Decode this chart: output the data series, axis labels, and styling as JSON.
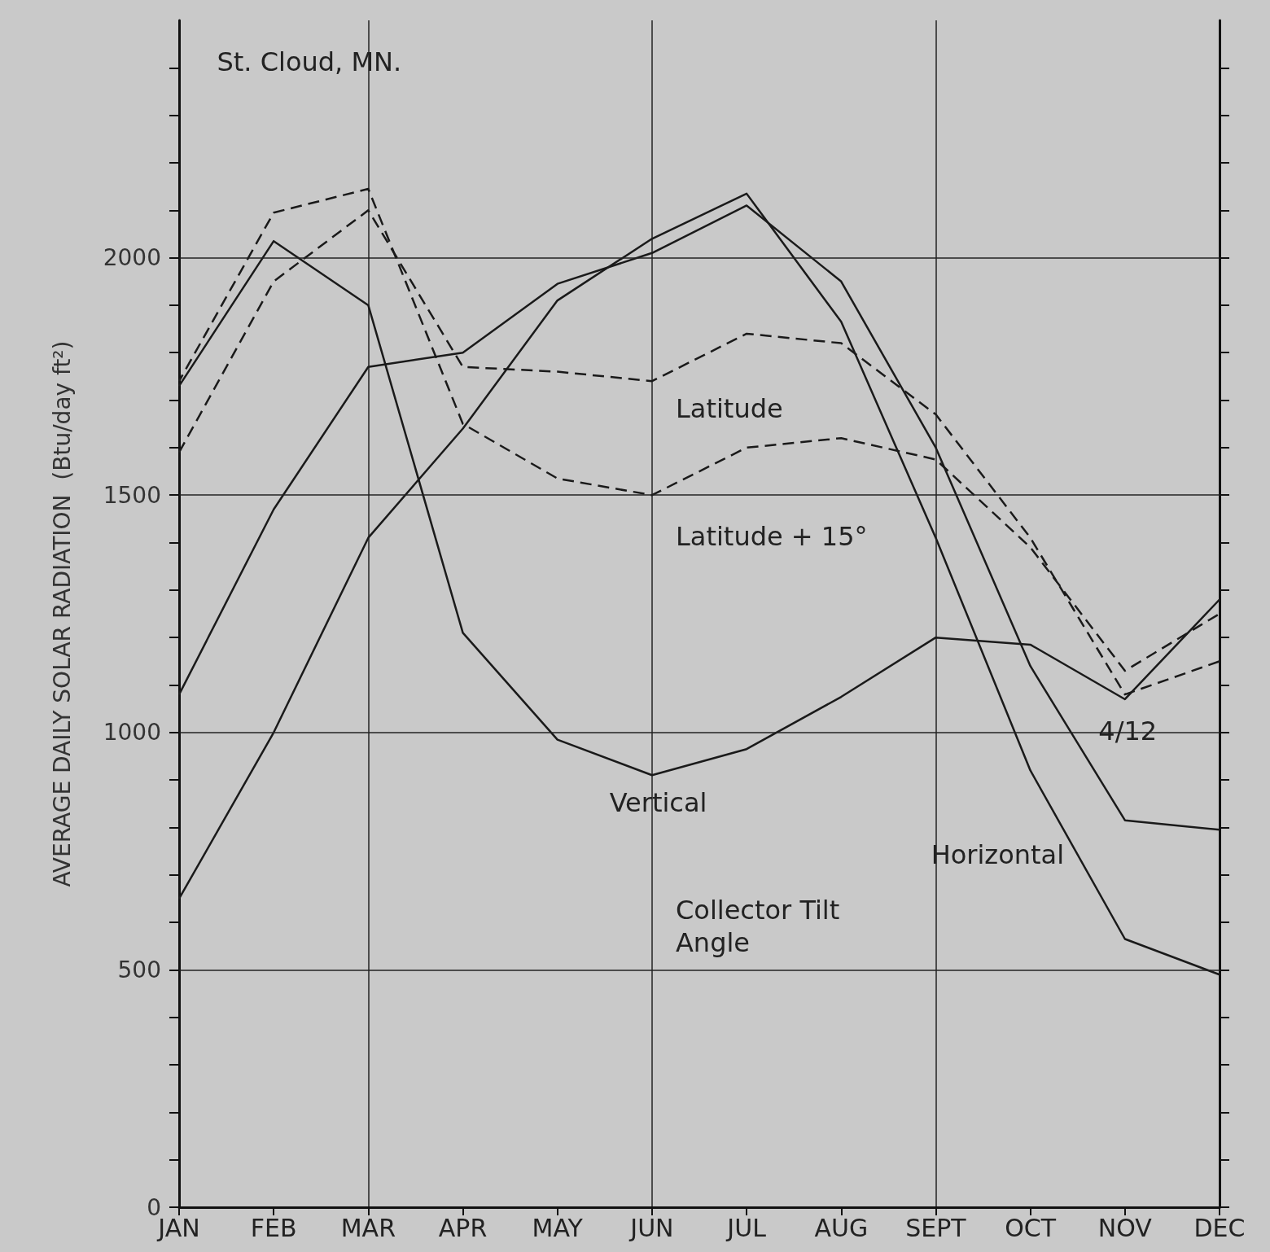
{
  "chart_data": {
    "type": "line",
    "ylabel": "AVERAGE DAILY SOLAR RADIATION  (Btu/day ft²)",
    "legend_title": "Collector Tilt Angle",
    "annotations": [
      "St. Cloud, MN."
    ],
    "categories": [
      "JAN",
      "FEB",
      "MAR",
      "APR",
      "MAY",
      "JUN",
      "JUL",
      "AUG",
      "SEPT",
      "OCT",
      "NOV",
      "DEC"
    ],
    "series": [
      {
        "name": "Latitude",
        "color": "#1a1a1a",
        "line_style": "dashed",
        "values": [
          1590,
          1950,
          2100,
          1770,
          1760,
          1740,
          1840,
          1820,
          1670,
          1410,
          1080,
          1150
        ]
      },
      {
        "name": "Latitude + 15°",
        "color": "#1a1a1a",
        "line_style": "dashed",
        "values": [
          1740,
          2095,
          2145,
          1650,
          1535,
          1500,
          1600,
          1620,
          1575,
          1390,
          1130,
          1250
        ]
      },
      {
        "name": "Horizontal",
        "color": "#1a1a1a",
        "line_style": "solid",
        "values": [
          650,
          1000,
          1410,
          1640,
          1910,
          2040,
          2135,
          1865,
          1410,
          920,
          565,
          490
        ]
      },
      {
        "name": "4/12",
        "color": "#1a1a1a",
        "line_style": "solid",
        "values": [
          1080,
          1470,
          1770,
          1800,
          1945,
          2010,
          2110,
          1950,
          1600,
          1140,
          815,
          795
        ]
      },
      {
        "name": "Vertical",
        "color": "#1a1a1a",
        "line_style": "solid",
        "values": [
          1730,
          2035,
          1900,
          1210,
          985,
          910,
          965,
          1075,
          1200,
          1185,
          1070,
          1280
        ]
      }
    ],
    "ylim": [
      0,
      2500
    ],
    "yticks": [
      0,
      {
        "value": 100,
        "label": null
      },
      {
        "value": 200,
        "label": null
      },
      {
        "value": 300,
        "label": null
      },
      {
        "value": 400,
        "label": null
      },
      500,
      {
        "value": 600,
        "label": null
      },
      {
        "value": 700,
        "label": null
      },
      {
        "value": 800,
        "label": null
      },
      {
        "value": 900,
        "label": null
      },
      1000,
      {
        "value": 1100,
        "label": null
      },
      {
        "value": 1200,
        "label": null
      },
      {
        "value": 1300,
        "label": null
      },
      {
        "value": 1400,
        "label": null
      },
      1500,
      {
        "value": 1600,
        "label": null
      },
      {
        "value": 1700,
        "label": null
      },
      {
        "value": 1800,
        "label": null
      },
      {
        "value": 1900,
        "label": null
      },
      2000,
      {
        "value": 2100,
        "label": null
      },
      {
        "value": 2200,
        "label": null
      },
      {
        "value": 2300,
        "label": null
      },
      {
        "value": 2400,
        "label": null
      }
    ],
    "grid": true,
    "legend": false,
    "marker": "none"
  }
}
